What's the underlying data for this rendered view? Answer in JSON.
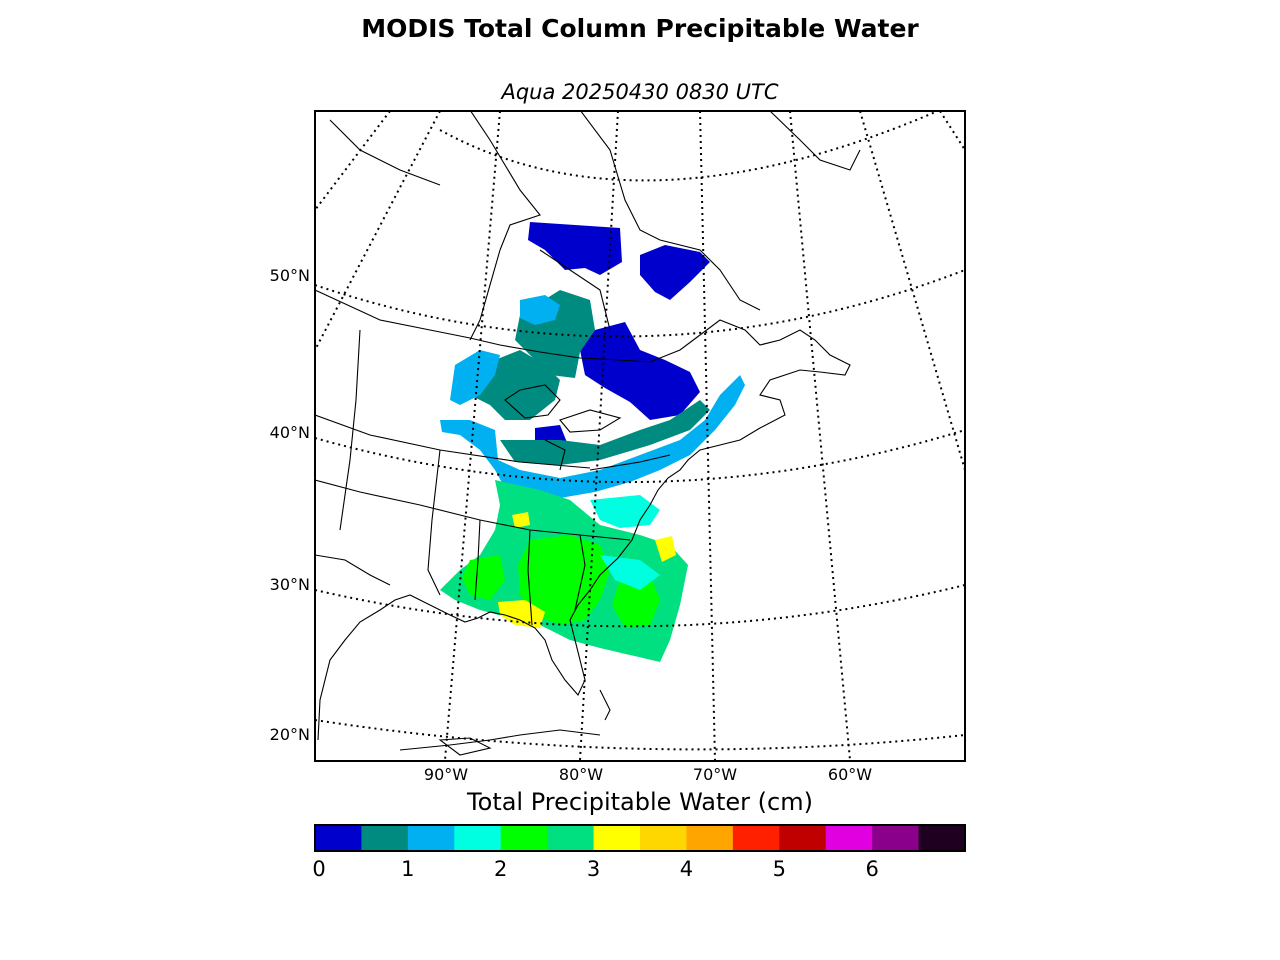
{
  "title": "MODIS Total Column Precipitable Water",
  "subtitle": "Aqua 20250430 0830 UTC",
  "lat_labels": [
    "50°N",
    "40°N",
    "30°N",
    "20°N"
  ],
  "lon_labels": [
    "90°W",
    "80°W",
    "70°W",
    "60°W"
  ],
  "colorbar": {
    "label": "Total Precipitable Water (cm)",
    "ticks": [
      "0",
      "1",
      "2",
      "3",
      "4",
      "5",
      "6"
    ],
    "colors": [
      "#0000cd",
      "#008b80",
      "#00b0f0",
      "#00ffe0",
      "#00ff00",
      "#00e080",
      "#ffff00",
      "#ffd700",
      "#ffa500",
      "#ff2000",
      "#c00000",
      "#e000e0",
      "#8b008b",
      "#200020"
    ]
  }
}
